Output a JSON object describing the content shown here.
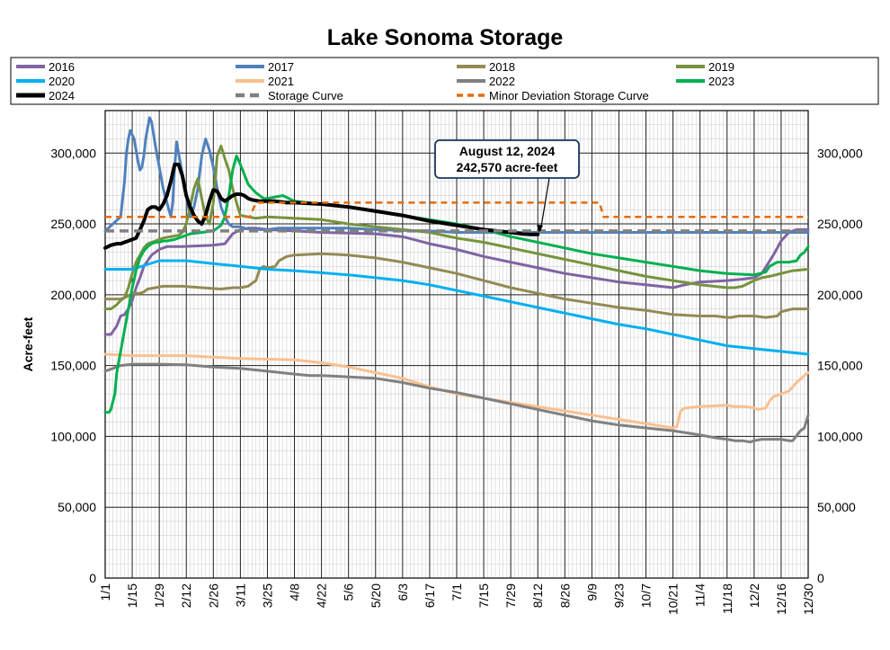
{
  "chart_data": {
    "type": "line",
    "title": "Lake Sonoma Storage",
    "ylabel": "Acre-feet",
    "xlabel": "",
    "ylim": [
      0,
      330000
    ],
    "y_ticks": [
      0,
      50000,
      100000,
      150000,
      200000,
      250000,
      300000
    ],
    "y_tick_labels": [
      "0",
      "50,000",
      "100,000",
      "150,000",
      "200,000",
      "250,000",
      "300,000"
    ],
    "x_domain_days": [
      0,
      364
    ],
    "x_tick_days": [
      0,
      14,
      28,
      42,
      56,
      70,
      84,
      98,
      112,
      126,
      140,
      154,
      168,
      182,
      196,
      210,
      224,
      238,
      252,
      266,
      280,
      294,
      308,
      322,
      336,
      350,
      364
    ],
    "x_tick_labels": [
      "1/1",
      "1/15",
      "1/29",
      "2/12",
      "2/26",
      "3/11",
      "3/25",
      "4/8",
      "4/22",
      "5/6",
      "5/20",
      "6/3",
      "6/17",
      "7/1",
      "7/15",
      "7/29",
      "8/12",
      "8/26",
      "9/9",
      "9/23",
      "10/7",
      "10/21",
      "11/4",
      "11/18",
      "12/2",
      "12/16",
      "12/30"
    ],
    "grid": true,
    "legend_position": "top",
    "annotation": {
      "line1": "August 12, 2024",
      "line2": "242,570 acre-feet",
      "x_day": 224,
      "y": 242570
    },
    "series": [
      {
        "name": "2016",
        "color": "#8064a2",
        "width": 3,
        "dash": "",
        "x": [
          0,
          3,
          6,
          8,
          10,
          12,
          14,
          16,
          18,
          20,
          24,
          28,
          32,
          40,
          56,
          62,
          66,
          70,
          74,
          78,
          84,
          98,
          112,
          126,
          140,
          154,
          168,
          182,
          196,
          210,
          224,
          238,
          252,
          266,
          280,
          294,
          300,
          308,
          322,
          330,
          336,
          340,
          346,
          350,
          354,
          358,
          364
        ],
        "y": [
          172000,
          172000,
          178000,
          185000,
          186000,
          190000,
          196000,
          205000,
          212000,
          220000,
          228000,
          232000,
          234000,
          234000,
          235000,
          236000,
          243000,
          246000,
          247000,
          247000,
          246000,
          245000,
          244000,
          243500,
          243000,
          241000,
          236000,
          232000,
          227000,
          223000,
          219000,
          215000,
          212000,
          209000,
          207000,
          205000,
          207000,
          209000,
          210000,
          211000,
          212000,
          215000,
          228000,
          238000,
          244000,
          246000,
          246000
        ]
      },
      {
        "name": "2017",
        "color": "#4f81bd",
        "width": 3,
        "dash": "",
        "x": [
          0,
          4,
          8,
          10,
          11,
          12,
          13,
          15,
          16,
          17,
          18,
          19,
          20,
          21,
          22,
          23,
          24,
          26,
          28,
          30,
          32,
          34,
          35,
          36,
          37,
          38,
          40,
          42,
          44,
          46,
          48,
          50,
          52,
          54,
          56,
          58,
          60,
          62,
          64,
          66,
          68,
          70,
          72,
          76,
          80,
          84,
          90,
          98,
          112,
          126,
          140,
          154,
          168,
          182,
          196,
          210,
          224,
          238,
          252,
          266,
          280,
          294,
          308,
          322,
          336,
          350,
          364
        ],
        "y": [
          245000,
          250000,
          255000,
          280000,
          300000,
          310000,
          316000,
          310000,
          302000,
          294000,
          288000,
          290000,
          298000,
          310000,
          318000,
          325000,
          322000,
          305000,
          290000,
          275000,
          265000,
          255000,
          265000,
          290000,
          308000,
          300000,
          285000,
          270000,
          255000,
          262000,
          275000,
          298000,
          310000,
          302000,
          290000,
          275000,
          262000,
          255000,
          250000,
          248000,
          248000,
          248000,
          247000,
          246000,
          246000,
          246000,
          247000,
          247000,
          247000,
          247000,
          246000,
          245500,
          245000,
          244000,
          244000,
          244000,
          244000,
          244000,
          244000,
          244000,
          244000,
          244000,
          244000,
          244000,
          244000,
          244000,
          244000
        ]
      },
      {
        "name": "2018",
        "color": "#948a54",
        "width": 3,
        "dash": "",
        "x": [
          0,
          4,
          8,
          12,
          14,
          18,
          20,
          22,
          26,
          30,
          40,
          50,
          60,
          66,
          70,
          74,
          76,
          78,
          80,
          82,
          84,
          88,
          90,
          94,
          98,
          112,
          126,
          140,
          154,
          168,
          182,
          196,
          210,
          224,
          238,
          252,
          266,
          280,
          294,
          308,
          316,
          322,
          324,
          328,
          330,
          336,
          342,
          348,
          350,
          356,
          364
        ],
        "y": [
          197000,
          197000,
          197000,
          199000,
          201000,
          201000,
          202000,
          204000,
          205000,
          206000,
          206000,
          205000,
          204000,
          205000,
          205000,
          206000,
          208000,
          210000,
          218000,
          220000,
          219000,
          220000,
          224000,
          227000,
          228000,
          229000,
          228000,
          226000,
          223000,
          219000,
          215000,
          210000,
          205000,
          201000,
          197000,
          194000,
          191000,
          189000,
          186000,
          185000,
          185000,
          184000,
          184000,
          185000,
          185000,
          185000,
          184000,
          185000,
          188000,
          190000,
          190000
        ]
      },
      {
        "name": "2019",
        "color": "#77933c",
        "width": 3,
        "dash": "",
        "x": [
          0,
          3,
          6,
          8,
          10,
          12,
          14,
          16,
          18,
          20,
          22,
          24,
          26,
          28,
          30,
          34,
          38,
          40,
          42,
          44,
          46,
          48,
          50,
          52,
          54,
          56,
          58,
          60,
          62,
          64,
          66,
          68,
          70,
          74,
          78,
          84,
          98,
          112,
          126,
          140,
          154,
          168,
          182,
          196,
          210,
          224,
          238,
          252,
          266,
          280,
          294,
          308,
          322,
          326,
          330,
          336,
          340,
          344,
          350,
          356,
          364
        ],
        "y": [
          190000,
          190000,
          193000,
          196000,
          198000,
          205000,
          215000,
          223000,
          228000,
          233000,
          236000,
          237000,
          238000,
          239000,
          240000,
          241000,
          242000,
          244000,
          250000,
          262000,
          275000,
          282000,
          268000,
          255000,
          250000,
          265000,
          298000,
          305000,
          296000,
          288000,
          275000,
          265000,
          256000,
          255000,
          254000,
          255000,
          254000,
          253000,
          250000,
          248000,
          246000,
          244000,
          240000,
          237000,
          233000,
          229000,
          225000,
          221000,
          217000,
          213000,
          210000,
          207000,
          205000,
          205000,
          206000,
          210000,
          212000,
          213000,
          215000,
          217000,
          218000
        ]
      },
      {
        "name": "2020",
        "color": "#00b0f0",
        "width": 3,
        "dash": "",
        "x": [
          0,
          14,
          28,
          42,
          56,
          70,
          84,
          98,
          112,
          126,
          140,
          154,
          168,
          182,
          196,
          210,
          224,
          238,
          252,
          266,
          280,
          294,
          308,
          322,
          336,
          350,
          364
        ],
        "y": [
          218000,
          218000,
          224000,
          224000,
          222000,
          220000,
          218000,
          217000,
          215500,
          214000,
          212000,
          210000,
          207000,
          203000,
          199000,
          195000,
          191000,
          187000,
          183000,
          179000,
          176000,
          172000,
          168000,
          164000,
          162000,
          160000,
          158000
        ]
      },
      {
        "name": "2021",
        "color": "#fac090",
        "width": 3,
        "dash": "",
        "x": [
          0,
          14,
          28,
          42,
          56,
          70,
          84,
          98,
          112,
          126,
          140,
          154,
          168,
          182,
          196,
          210,
          224,
          238,
          252,
          266,
          280,
          294,
          296,
          298,
          300,
          308,
          314,
          322,
          326,
          332,
          336,
          338,
          342,
          344,
          346,
          350,
          354,
          358,
          362,
          364
        ],
        "y": [
          158000,
          157000,
          157000,
          157000,
          156000,
          155000,
          154500,
          154000,
          152000,
          149000,
          145000,
          141000,
          135000,
          130000,
          127000,
          124000,
          121000,
          118000,
          115000,
          112000,
          109000,
          106000,
          107000,
          118000,
          120000,
          121000,
          121500,
          122000,
          121000,
          121000,
          120000,
          119000,
          120000,
          125000,
          128000,
          130000,
          132000,
          138000,
          143000,
          145000
        ]
      },
      {
        "name": "2022",
        "color": "#808080",
        "width": 3,
        "dash": "",
        "x": [
          0,
          4,
          8,
          14,
          28,
          42,
          56,
          70,
          84,
          98,
          106,
          112,
          126,
          140,
          154,
          168,
          182,
          196,
          210,
          224,
          238,
          252,
          266,
          280,
          294,
          308,
          316,
          322,
          326,
          330,
          334,
          336,
          340,
          344,
          346,
          350,
          354,
          356,
          360,
          362,
          364
        ],
        "y": [
          146000,
          148000,
          150000,
          151000,
          151000,
          150500,
          149000,
          148000,
          146000,
          144000,
          143000,
          143000,
          142000,
          141000,
          138000,
          134000,
          131000,
          127000,
          123000,
          119000,
          115000,
          111000,
          108000,
          106000,
          104000,
          101000,
          99000,
          98000,
          97000,
          97000,
          96000,
          97000,
          98000,
          98000,
          98000,
          98000,
          97000,
          97000,
          104000,
          106000,
          115000
        ]
      },
      {
        "name": "2023",
        "color": "#00b050",
        "width": 3,
        "dash": "",
        "x": [
          0,
          2,
          3,
          5,
          6,
          8,
          10,
          12,
          14,
          16,
          18,
          20,
          22,
          24,
          26,
          28,
          30,
          32,
          36,
          40,
          44,
          50,
          56,
          60,
          62,
          64,
          66,
          68,
          70,
          72,
          74,
          76,
          78,
          80,
          82,
          84,
          88,
          92,
          98,
          112,
          126,
          140,
          154,
          168,
          182,
          196,
          210,
          224,
          238,
          252,
          266,
          280,
          294,
          308,
          322,
          336,
          342,
          344,
          348,
          350,
          354,
          358,
          360,
          362,
          364
        ],
        "y": [
          117000,
          117000,
          119000,
          130000,
          145000,
          160000,
          175000,
          190000,
          205000,
          217000,
          226000,
          231000,
          234000,
          236000,
          237000,
          237000,
          238000,
          238000,
          239000,
          241000,
          243000,
          244000,
          245000,
          249000,
          255000,
          270000,
          288000,
          298000,
          292000,
          285000,
          278000,
          275000,
          272000,
          270000,
          268000,
          268000,
          269000,
          270000,
          266000,
          264000,
          262000,
          259000,
          256000,
          253000,
          250000,
          246000,
          241000,
          237000,
          233000,
          229000,
          226000,
          223000,
          220000,
          217000,
          215000,
          214000,
          216000,
          220000,
          223000,
          223000,
          223000,
          224000,
          228000,
          230000,
          234000
        ]
      },
      {
        "name": "2024",
        "color": "#000000",
        "width": 4,
        "dash": "",
        "x": [
          0,
          3,
          6,
          8,
          10,
          12,
          14,
          16,
          18,
          20,
          22,
          24,
          26,
          28,
          30,
          32,
          34,
          36,
          38,
          40,
          42,
          44,
          46,
          48,
          50,
          52,
          54,
          56,
          58,
          60,
          62,
          64,
          66,
          68,
          70,
          72,
          74,
          76,
          80,
          84,
          88,
          94,
          98,
          112,
          126,
          140,
          154,
          168,
          182,
          196,
          210,
          216,
          220,
          224
        ],
        "y": [
          233000,
          235000,
          236000,
          236000,
          237000,
          238000,
          239000,
          240000,
          246000,
          252000,
          260000,
          262000,
          262000,
          260000,
          264000,
          270000,
          280000,
          292000,
          292000,
          284000,
          270000,
          262000,
          256000,
          252000,
          250000,
          256000,
          266000,
          274000,
          273000,
          268000,
          266000,
          268000,
          270000,
          271000,
          271000,
          270000,
          268000,
          267000,
          266000,
          266000,
          266000,
          265000,
          265000,
          264000,
          262000,
          259000,
          256000,
          252000,
          249000,
          246000,
          244000,
          243000,
          242600,
          242570
        ]
      },
      {
        "name": "Storage Curve",
        "color": "#808080",
        "width": 3.5,
        "dash": "10,6",
        "x": [
          0,
          364
        ],
        "y": [
          245000,
          245000
        ]
      },
      {
        "name": "Minor Deviation Storage Curve",
        "color": "#e46c0a",
        "width": 2.5,
        "dash": "7,5",
        "x": [
          0,
          75,
          78,
          256,
          258,
          364
        ],
        "y": [
          255000,
          255000,
          265000,
          265000,
          255000,
          255000
        ]
      }
    ]
  }
}
